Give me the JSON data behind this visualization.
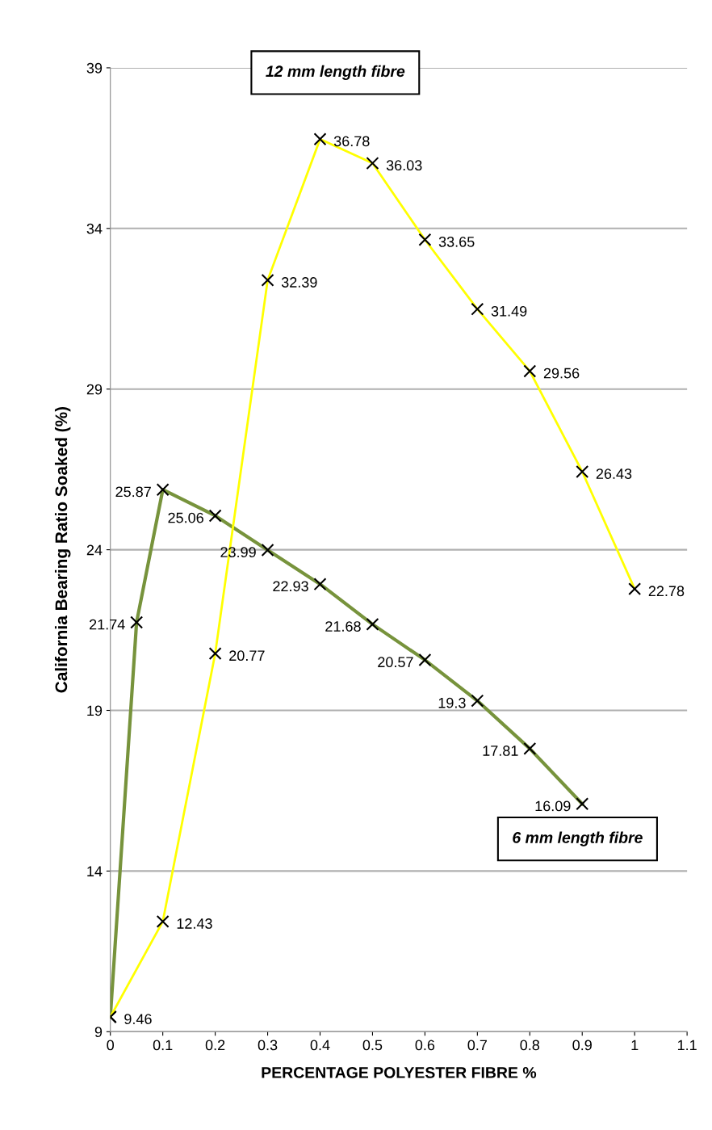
{
  "chart_data": {
    "type": "line",
    "xlabel": "PERCENTAGE POLYESTER FIBRE %",
    "ylabel": "California Bearing Ratio Soaked (%)",
    "xlim": [
      0,
      1.1
    ],
    "xticks": [
      0,
      0.1,
      0.2,
      0.3,
      0.4,
      0.5,
      0.6,
      0.7,
      0.8,
      0.9,
      1,
      1.1
    ],
    "ylim": [
      9,
      39
    ],
    "yticks": [
      9,
      14,
      19,
      24,
      29,
      34,
      39
    ],
    "grid": "y",
    "legend": false,
    "marker": "cross",
    "line_style": "solid",
    "series": [
      {
        "name": "12 mm length fibre",
        "color": "#ffff00",
        "x": [
          0,
          0.1,
          0.2,
          0.3,
          0.4,
          0.5,
          0.6,
          0.7,
          0.8,
          0.9,
          1
        ],
        "values": [
          9.46,
          12.43,
          20.77,
          32.39,
          36.78,
          36.03,
          33.65,
          31.49,
          29.56,
          26.43,
          22.78
        ],
        "value_labels": [
          "9.46",
          "12.43",
          "20.77",
          "32.39",
          "36.78",
          "36.03",
          "33.65",
          "31.49",
          "29.56",
          "26.43",
          "22.78"
        ]
      },
      {
        "name": "6 mm length fibre",
        "color": "#77933c",
        "x": [
          0,
          0.05,
          0.1,
          0.2,
          0.3,
          0.4,
          0.5,
          0.6,
          0.7,
          0.8,
          0.9
        ],
        "values": [
          9.46,
          21.74,
          25.87,
          25.06,
          23.99,
          22.93,
          21.68,
          20.57,
          19.3,
          17.81,
          16.09
        ],
        "value_labels": [
          null,
          "21.74",
          "25.87",
          "25.06",
          "23.99",
          "22.93",
          "21.68",
          "20.57",
          "19.3",
          "17.81",
          "16.09"
        ]
      }
    ]
  }
}
